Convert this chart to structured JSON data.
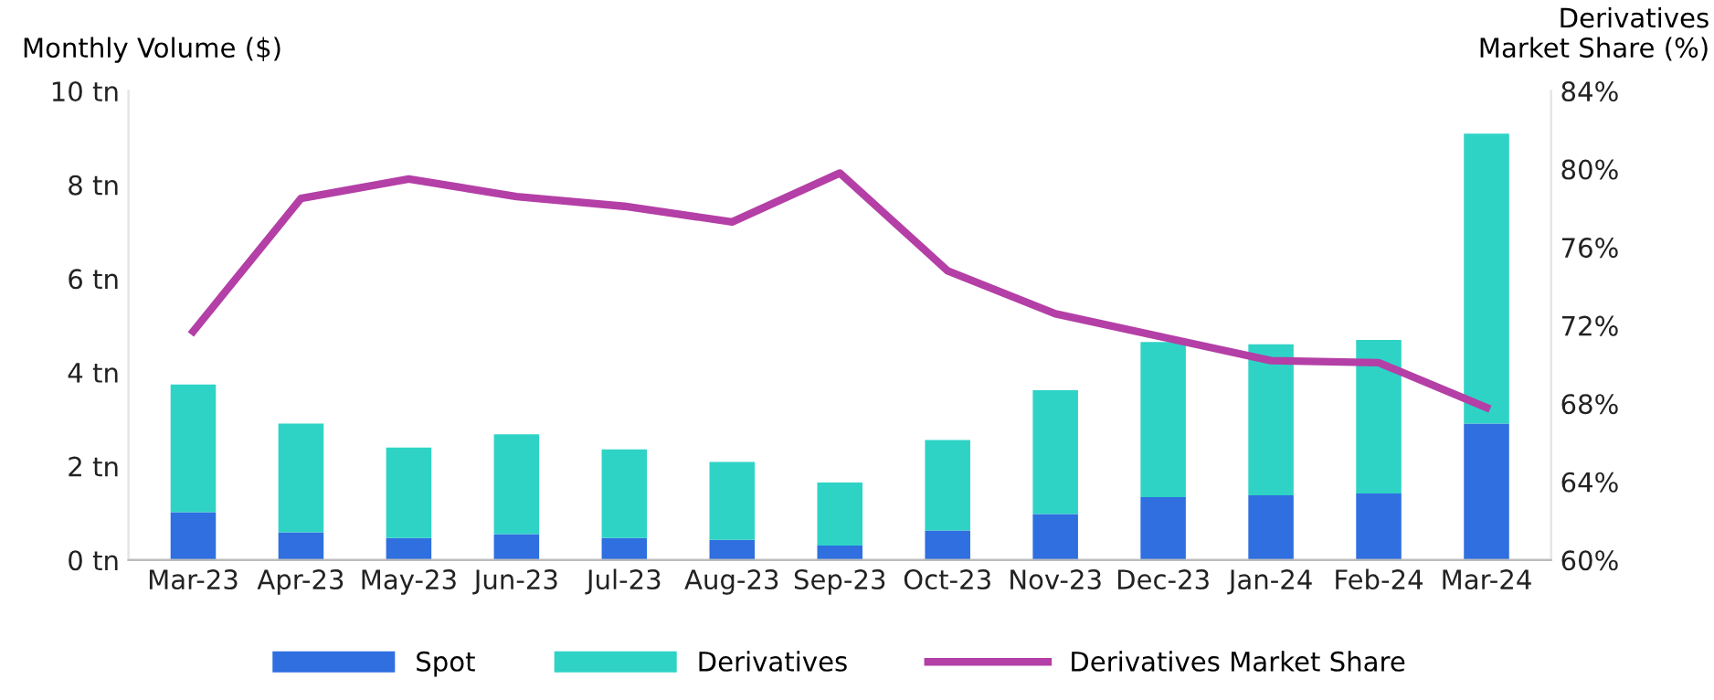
{
  "chart_data": {
    "type": "bar",
    "stacked": true,
    "ylabel": "Monthly Volume ($)",
    "y2label": "Derivatives\nMarket Share (%)",
    "categories": [
      "Mar-23",
      "Apr-23",
      "May-23",
      "Jun-23",
      "Jul-23",
      "Aug-23",
      "Sep-23",
      "Oct-23",
      "Nov-23",
      "Dec-23",
      "Jan-24",
      "Feb-24",
      "Mar-24"
    ],
    "series": [
      {
        "name": "Spot",
        "color": "#2f6fe0",
        "values": [
          1.02,
          0.59,
          0.47,
          0.55,
          0.47,
          0.43,
          0.31,
          0.63,
          0.98,
          1.34,
          1.38,
          1.42,
          2.91
        ]
      },
      {
        "name": "Derivatives",
        "color": "#2ed3c6",
        "values": [
          2.72,
          2.32,
          1.93,
          2.13,
          1.89,
          1.66,
          1.34,
          1.93,
          2.64,
          3.31,
          3.22,
          3.27,
          6.18
        ]
      },
      {
        "name": "Derivatives Market Share",
        "type": "line",
        "axis": "y2",
        "color": "#b43fa6",
        "values": [
          71.7,
          78.5,
          79.5,
          78.6,
          78.1,
          77.3,
          79.8,
          74.8,
          72.6,
          71.4,
          70.2,
          70.1,
          67.8
        ]
      }
    ],
    "ylim": [
      0,
      10
    ],
    "yticks": [
      {
        "value": 0,
        "label": "0 tn"
      },
      {
        "value": 2,
        "label": "2 tn"
      },
      {
        "value": 4,
        "label": "4 tn"
      },
      {
        "value": 6,
        "label": "6 tn"
      },
      {
        "value": 8,
        "label": "8 tn"
      },
      {
        "value": 10,
        "label": "10 tn"
      }
    ],
    "y2lim": [
      60,
      84
    ],
    "y2ticks": [
      {
        "value": 60,
        "label": "60%"
      },
      {
        "value": 64,
        "label": "64%"
      },
      {
        "value": 68,
        "label": "68%"
      },
      {
        "value": 72,
        "label": "72%"
      },
      {
        "value": 76,
        "label": "76%"
      },
      {
        "value": 80,
        "label": "80%"
      },
      {
        "value": 84,
        "label": "84%"
      }
    ],
    "legend": "bottom",
    "grid": false,
    "marker": "none",
    "line_style": "solid"
  }
}
